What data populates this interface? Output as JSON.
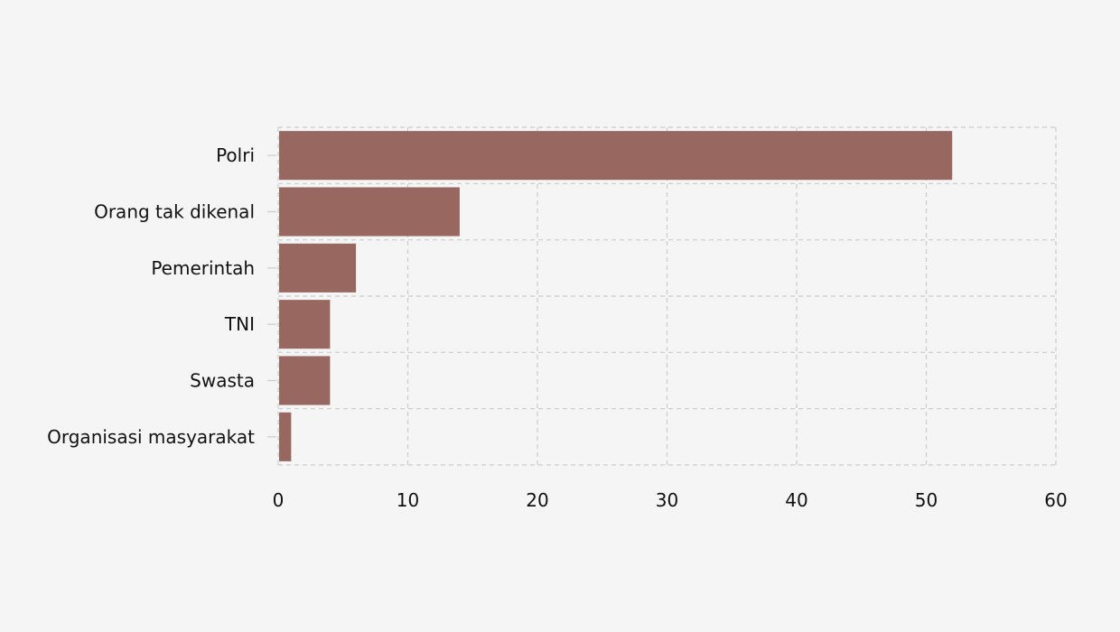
{
  "chart_data": {
    "type": "bar",
    "orientation": "horizontal",
    "categories": [
      "Polri",
      "Orang tak dikenal",
      "Pemerintah",
      "TNI",
      "Swasta",
      "Organisasi masyarakat"
    ],
    "values": [
      52,
      14,
      6,
      4,
      4,
      1
    ],
    "xlim": [
      0,
      60
    ],
    "xticks": [
      0,
      10,
      20,
      30,
      40,
      50,
      60
    ],
    "title": "",
    "xlabel": "",
    "ylabel": "",
    "grid": true,
    "grid_style": "dashed",
    "bar_color": "#98675f",
    "background_color": "#f5f5f5",
    "grid_color": "#cccccc"
  }
}
